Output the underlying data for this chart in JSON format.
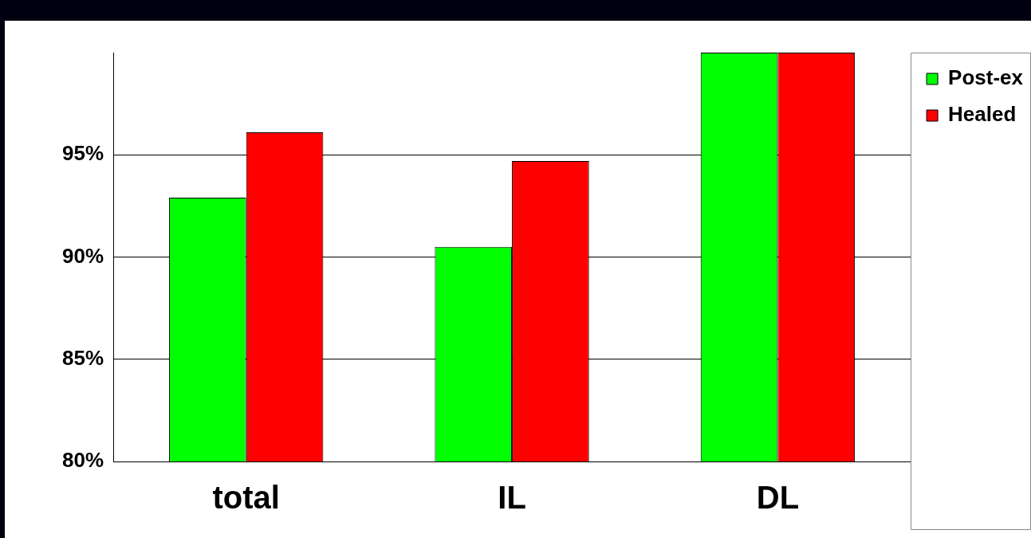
{
  "chart_data": {
    "type": "bar",
    "categories": [
      "total",
      "IL",
      "DL"
    ],
    "series": [
      {
        "name": "Post-ex",
        "color": "#00ff00",
        "values": [
          92.9,
          90.5,
          100
        ]
      },
      {
        "name": "Healed",
        "color": "#ff0000",
        "values": [
          96.1,
          94.7,
          100
        ]
      }
    ],
    "ylim": [
      80,
      100
    ],
    "yticks": [
      {
        "value": 80,
        "label": "80%"
      },
      {
        "value": 85,
        "label": "85%"
      },
      {
        "value": 90,
        "label": "90%"
      },
      {
        "value": 95,
        "label": "95%"
      }
    ],
    "grid": "y",
    "legend": "right"
  }
}
